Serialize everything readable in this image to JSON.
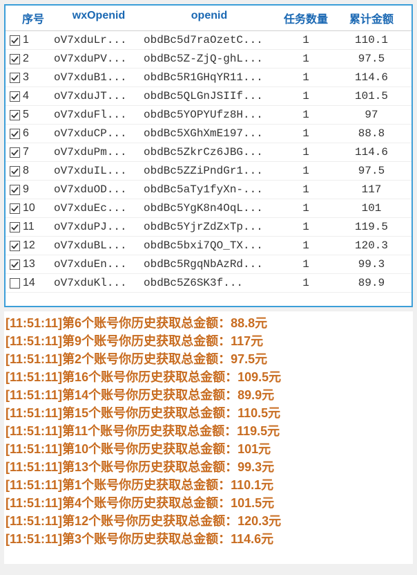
{
  "table": {
    "headers": {
      "seq": "序号",
      "wxOpenid": "wxOpenid",
      "openid": "openid",
      "tasks": "任务数量",
      "amount": "累计金额"
    },
    "header_color": "#1a68b3",
    "border_color": "#3b9ed8",
    "rows": [
      {
        "checked": true,
        "seq": "1",
        "wxOpenid": "oV7xduLr...",
        "openid": "obdBc5d7raOzetC...",
        "tasks": "1",
        "amount": "110.1"
      },
      {
        "checked": true,
        "seq": "2",
        "wxOpenid": "oV7xduPV...",
        "openid": "obdBc5Z-ZjQ-ghL...",
        "tasks": "1",
        "amount": "97.5"
      },
      {
        "checked": true,
        "seq": "3",
        "wxOpenid": "oV7xduB1...",
        "openid": "obdBc5R1GHqYR11...",
        "tasks": "1",
        "amount": "114.6"
      },
      {
        "checked": true,
        "seq": "4",
        "wxOpenid": "oV7xduJT...",
        "openid": "obdBc5QLGnJSIIf...",
        "tasks": "1",
        "amount": "101.5"
      },
      {
        "checked": true,
        "seq": "5",
        "wxOpenid": "oV7xduFl...",
        "openid": "obdBc5YOPYUfz8H...",
        "tasks": "1",
        "amount": "97"
      },
      {
        "checked": true,
        "seq": "6",
        "wxOpenid": "oV7xduCP...",
        "openid": "obdBc5XGhXmE197...",
        "tasks": "1",
        "amount": "88.8"
      },
      {
        "checked": true,
        "seq": "7",
        "wxOpenid": "oV7xduPm...",
        "openid": "obdBc5ZkrCz6JBG...",
        "tasks": "1",
        "amount": "114.6"
      },
      {
        "checked": true,
        "seq": "8",
        "wxOpenid": "oV7xduIL...",
        "openid": "obdBc5ZZiPndGr1...",
        "tasks": "1",
        "amount": "97.5"
      },
      {
        "checked": true,
        "seq": "9",
        "wxOpenid": "oV7xduOD...",
        "openid": "obdBc5aTy1fyXn-...",
        "tasks": "1",
        "amount": "117"
      },
      {
        "checked": true,
        "seq": "10",
        "wxOpenid": "oV7xduEc...",
        "openid": "obdBc5YgK8n4OqL...",
        "tasks": "1",
        "amount": "101"
      },
      {
        "checked": true,
        "seq": "11",
        "wxOpenid": "oV7xduPJ...",
        "openid": "obdBc5YjrZdZxTp...",
        "tasks": "1",
        "amount": "119.5"
      },
      {
        "checked": true,
        "seq": "12",
        "wxOpenid": "oV7xduBL...",
        "openid": "obdBc5bxi7QO_TX...",
        "tasks": "1",
        "amount": "120.3"
      },
      {
        "checked": true,
        "seq": "13",
        "wxOpenid": "oV7xduEn...",
        "openid": "obdBc5RgqNbAzRd...",
        "tasks": "1",
        "amount": "99.3"
      },
      {
        "checked": false,
        "seq": "14",
        "wxOpenid": "oV7xduKl...",
        "openid": "obdBc5Z6SK3f...",
        "tasks": "1",
        "amount": "89.9"
      }
    ]
  },
  "log": {
    "text_color": "#c86c20",
    "lines": [
      {
        "ts": "[11:51:11]",
        "msg": "第6个账号你历史获取总金额：",
        "amt": "88.8元"
      },
      {
        "ts": "[11:51:11]",
        "msg": "第9个账号你历史获取总金额：",
        "amt": "117元"
      },
      {
        "ts": "[11:51:11]",
        "msg": "第2个账号你历史获取总金额：",
        "amt": "97.5元"
      },
      {
        "ts": "[11:51:11]",
        "msg": "第16个账号你历史获取总金额：",
        "amt": "109.5元"
      },
      {
        "ts": "[11:51:11]",
        "msg": "第14个账号你历史获取总金额：",
        "amt": "89.9元"
      },
      {
        "ts": "[11:51:11]",
        "msg": "第15个账号你历史获取总金额：",
        "amt": "110.5元"
      },
      {
        "ts": "[11:51:11]",
        "msg": "第11个账号你历史获取总金额：",
        "amt": "119.5元"
      },
      {
        "ts": "[11:51:11]",
        "msg": "第10个账号你历史获取总金额：",
        "amt": "101元"
      },
      {
        "ts": "[11:51:11]",
        "msg": "第13个账号你历史获取总金额：",
        "amt": "99.3元"
      },
      {
        "ts": "[11:51:11]",
        "msg": "第1个账号你历史获取总金额：",
        "amt": "110.1元"
      },
      {
        "ts": "[11:51:11]",
        "msg": "第4个账号你历史获取总金额：",
        "amt": "101.5元"
      },
      {
        "ts": "[11:51:11]",
        "msg": "第12个账号你历史获取总金额：",
        "amt": "120.3元"
      },
      {
        "ts": "[11:51:11]",
        "msg": "第3个账号你历史获取总金额：",
        "amt": "114.6元"
      }
    ]
  }
}
